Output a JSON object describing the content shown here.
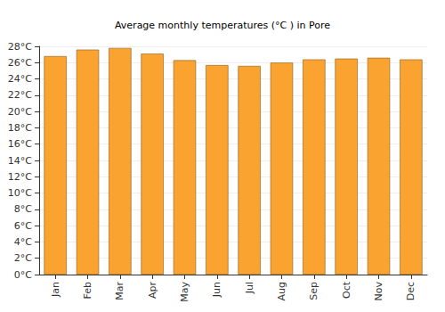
{
  "chart_data": {
    "type": "bar",
    "title": "Average monthly temperatures (°C ) in Pore",
    "categories": [
      "Jan",
      "Feb",
      "Mar",
      "Apr",
      "May",
      "Jun",
      "Jul",
      "Aug",
      "Sep",
      "Oct",
      "Nov",
      "Dec"
    ],
    "values": [
      26.8,
      27.6,
      27.8,
      27.1,
      26.3,
      25.7,
      25.6,
      26.0,
      26.4,
      26.5,
      26.6,
      26.4
    ],
    "color": "#fba330",
    "ylim": [
      0,
      28
    ],
    "yticks": [
      {
        "value": 0,
        "label": "0°C"
      },
      {
        "value": 2,
        "label": "2°C"
      },
      {
        "value": 4,
        "label": "4°C"
      },
      {
        "value": 6,
        "label": "6°C"
      },
      {
        "value": 8,
        "label": "8°C"
      },
      {
        "value": 10,
        "label": "10°C"
      },
      {
        "value": 12,
        "label": "12°C"
      },
      {
        "value": 14,
        "label": "14°C"
      },
      {
        "value": 16,
        "label": "16°C"
      },
      {
        "value": 18,
        "label": "18°C"
      },
      {
        "value": 20,
        "label": "20°C"
      },
      {
        "value": 22,
        "label": "22°C"
      },
      {
        "value": 24,
        "label": "24°C"
      },
      {
        "value": 26,
        "label": "26°C"
      },
      {
        "value": 28,
        "label": "28°C"
      }
    ],
    "grid": true
  }
}
